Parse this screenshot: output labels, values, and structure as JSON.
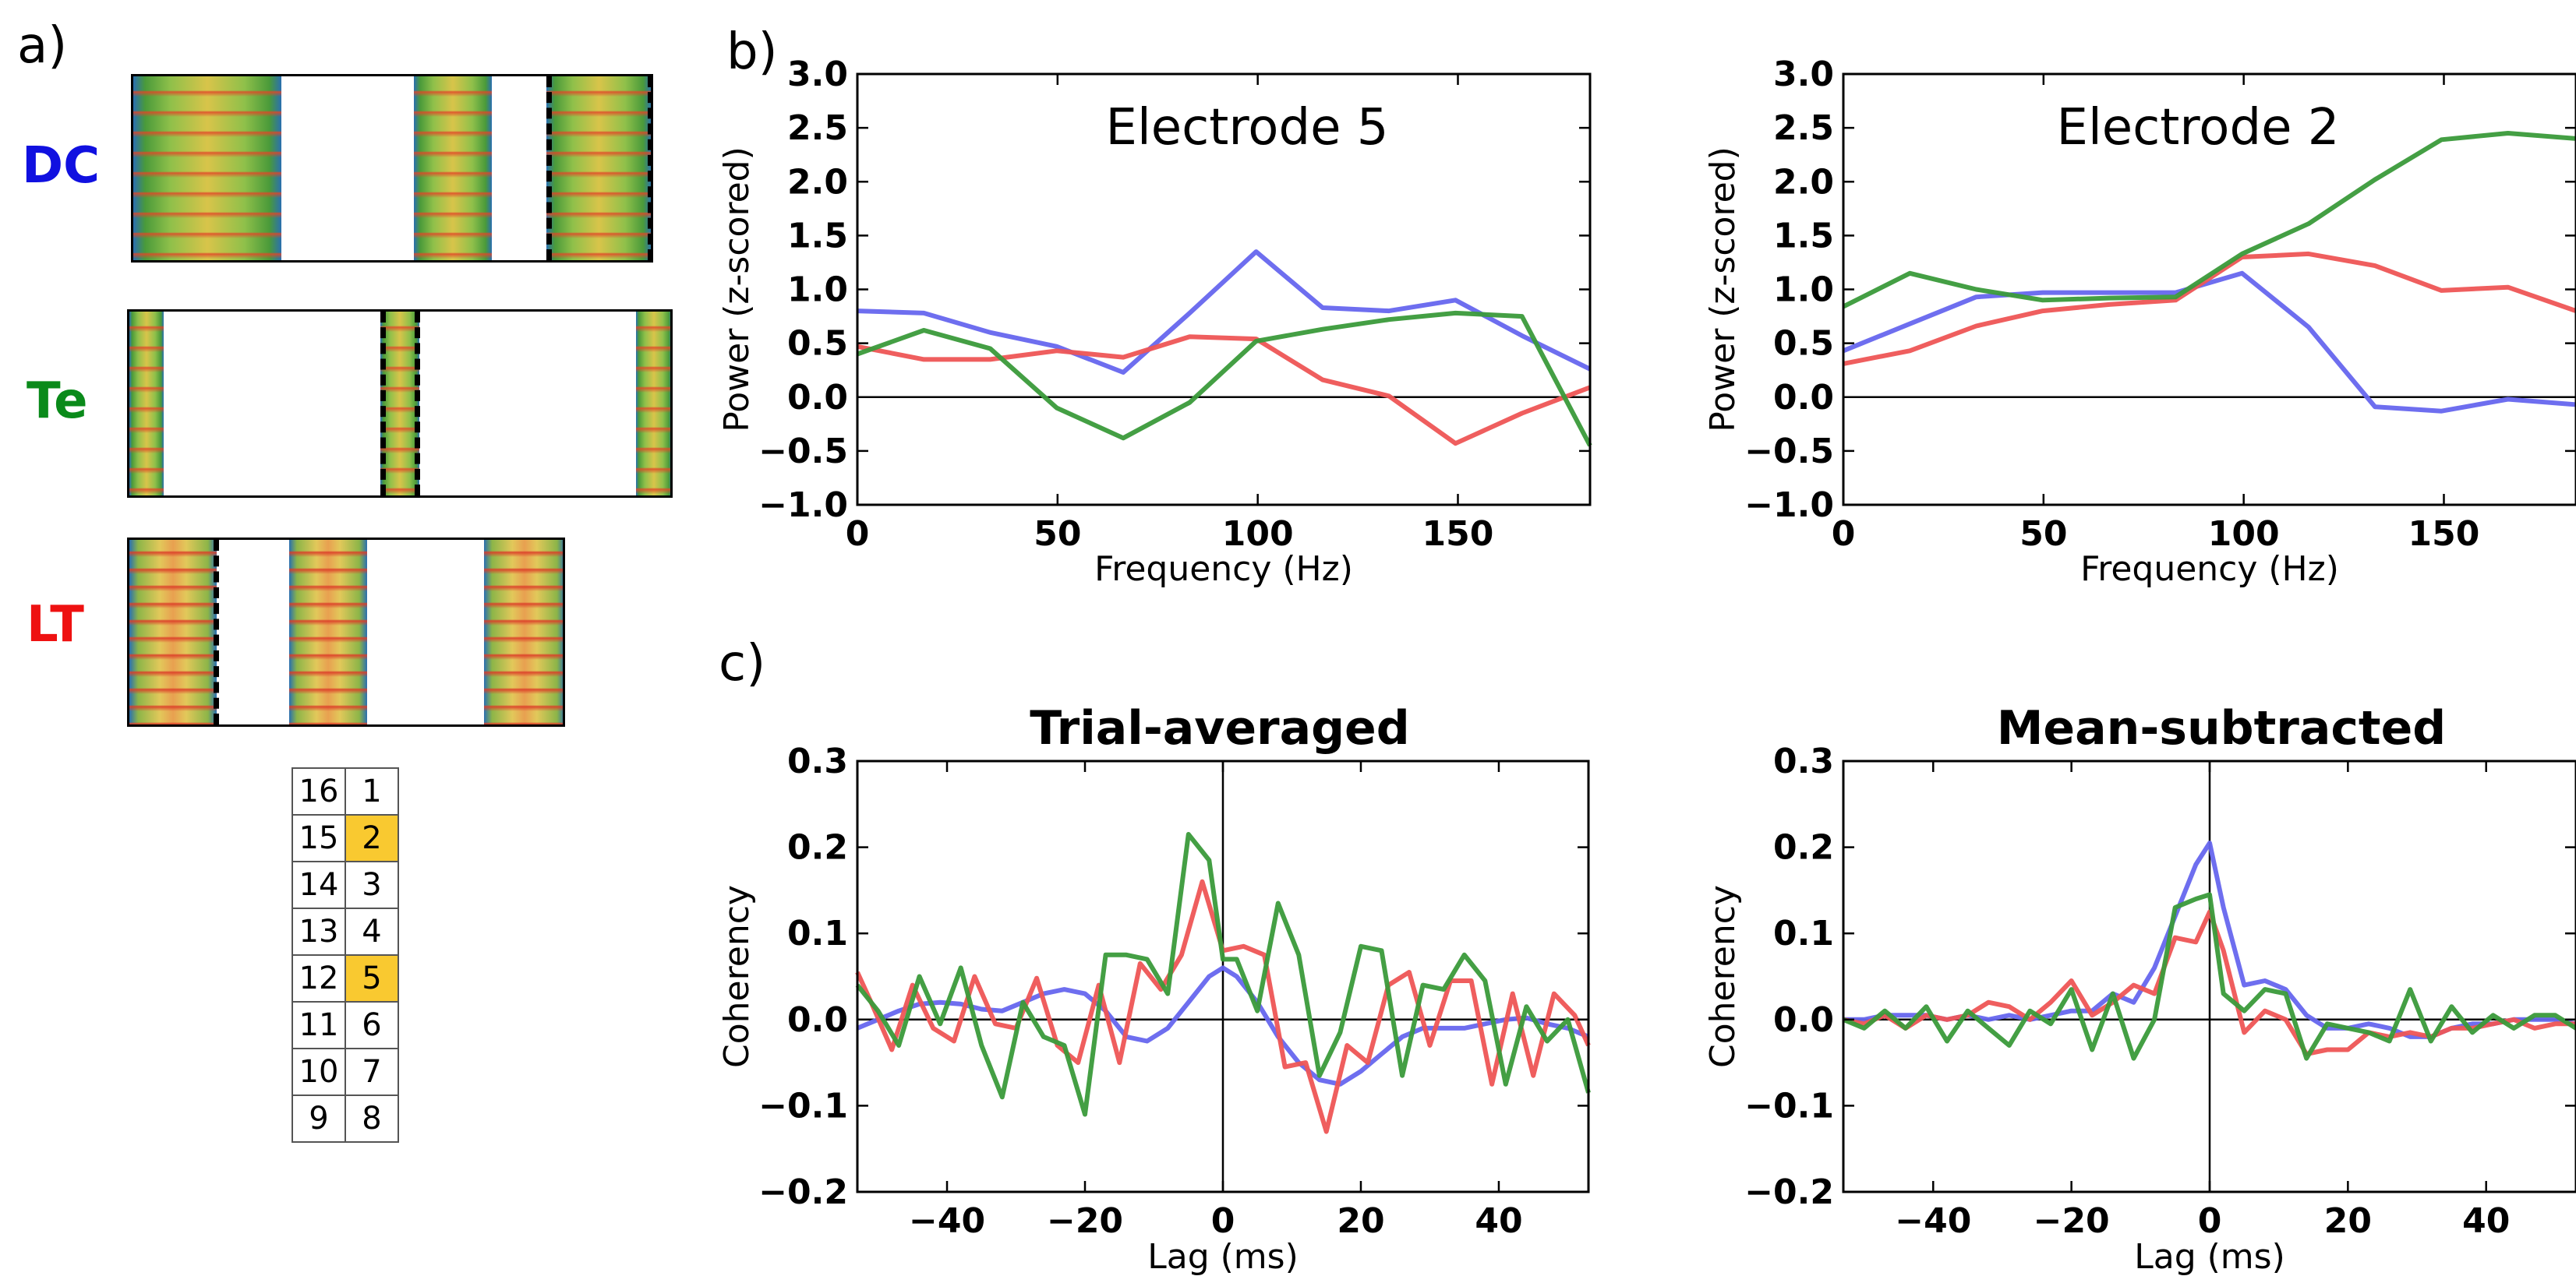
{
  "panel_labels": {
    "a": "a)",
    "b": "b)",
    "c": "c)"
  },
  "stim_labels": [
    {
      "text": "DC",
      "color": "#1010e0"
    },
    {
      "text": "Te",
      "color": "#0a8a1a"
    },
    {
      "text": "LT",
      "color": "#ee1111"
    }
  ],
  "electrode_grid": {
    "rows": [
      [
        "16",
        "1"
      ],
      [
        "15",
        "2"
      ],
      [
        "14",
        "3"
      ],
      [
        "13",
        "4"
      ],
      [
        "12",
        "5"
      ],
      [
        "11",
        "6"
      ],
      [
        "10",
        "7"
      ],
      [
        "9",
        "8"
      ]
    ],
    "highlighted": [
      "2",
      "5"
    ],
    "highlight_color": "#f9c930"
  },
  "colors": {
    "DC": "#6666ee",
    "Te": "#3a9a3a",
    "LT": "#ee5555"
  },
  "chart_data": [
    {
      "type": "line",
      "title": "Electrode 5",
      "xlabel": "Frequency (Hz)",
      "ylabel": "Power (z-scored)",
      "xlim": [
        0,
        183
      ],
      "ylim": [
        -1.0,
        3.0
      ],
      "xticks": [
        0,
        50,
        100,
        150
      ],
      "xtick_labels": [
        "0",
        "50",
        "100",
        "150"
      ],
      "yticks": [
        -1.0,
        -0.5,
        0.0,
        0.5,
        1.0,
        1.5,
        2.0,
        2.5,
        3.0
      ],
      "ytick_labels": [
        "−1.0",
        "−0.5",
        "0.0",
        "0.5",
        "1.0",
        "1.5",
        "2.0",
        "2.5",
        "3.0"
      ],
      "hline": 0,
      "series": [
        {
          "key": "DC",
          "color": "#6666ee",
          "x": [
            0,
            16.6,
            33.2,
            49.8,
            66.4,
            83,
            99.6,
            116.2,
            132.8,
            149.4,
            166,
            183
          ],
          "y": [
            0.8,
            0.78,
            0.6,
            0.47,
            0.23,
            0.78,
            1.35,
            0.83,
            0.8,
            0.9,
            0.57,
            0.26
          ]
        },
        {
          "key": "LT",
          "color": "#ee5555",
          "x": [
            0,
            16.6,
            33.2,
            49.8,
            66.4,
            83,
            99.6,
            116.2,
            132.8,
            149.4,
            166,
            183
          ],
          "y": [
            0.47,
            0.35,
            0.35,
            0.43,
            0.37,
            0.56,
            0.54,
            0.16,
            0.01,
            -0.43,
            -0.15,
            0.09
          ]
        },
        {
          "key": "Te",
          "color": "#3a9a3a",
          "x": [
            0,
            16.6,
            33.2,
            49.8,
            66.4,
            83,
            99.6,
            116.2,
            132.8,
            149.4,
            166,
            183
          ],
          "y": [
            0.4,
            0.62,
            0.45,
            -0.1,
            -0.38,
            -0.05,
            0.52,
            0.63,
            0.72,
            0.78,
            0.75,
            -0.45
          ]
        }
      ]
    },
    {
      "type": "line",
      "title": "Electrode 2",
      "xlabel": "Frequency (Hz)",
      "ylabel": "Power (z-scored)",
      "xlim": [
        0,
        183
      ],
      "ylim": [
        -1.0,
        3.0
      ],
      "xticks": [
        0,
        50,
        100,
        150
      ],
      "xtick_labels": [
        "0",
        "50",
        "100",
        "150"
      ],
      "yticks": [
        -1.0,
        -0.5,
        0.0,
        0.5,
        1.0,
        1.5,
        2.0,
        2.5,
        3.0
      ],
      "ytick_labels": [
        "−1.0",
        "−0.5",
        "0.0",
        "0.5",
        "1.0",
        "1.5",
        "2.0",
        "2.5",
        "3.0"
      ],
      "hline": 0,
      "series": [
        {
          "key": "DC",
          "color": "#6666ee",
          "x": [
            0,
            16.6,
            33.2,
            49.8,
            66.4,
            83,
            99.6,
            116.2,
            132.8,
            149.4,
            166,
            183
          ],
          "y": [
            0.43,
            0.68,
            0.93,
            0.97,
            0.97,
            0.97,
            1.15,
            0.65,
            -0.09,
            -0.13,
            -0.02,
            -0.07
          ]
        },
        {
          "key": "LT",
          "color": "#ee5555",
          "x": [
            0,
            16.6,
            33.2,
            49.8,
            66.4,
            83,
            99.6,
            116.2,
            132.8,
            149.4,
            166,
            183
          ],
          "y": [
            0.31,
            0.43,
            0.66,
            0.8,
            0.86,
            0.9,
            1.3,
            1.33,
            1.22,
            0.99,
            1.02,
            0.8
          ]
        },
        {
          "key": "Te",
          "color": "#3a9a3a",
          "x": [
            0,
            16.6,
            33.2,
            49.8,
            66.4,
            83,
            99.6,
            116.2,
            132.8,
            149.4,
            166,
            183
          ],
          "y": [
            0.84,
            1.15,
            1.0,
            0.9,
            0.92,
            0.93,
            1.33,
            1.61,
            2.02,
            2.39,
            2.45,
            2.4
          ]
        }
      ]
    },
    {
      "type": "line",
      "title": "Trial-averaged",
      "xlabel": "Lag (ms)",
      "ylabel": "Coherency",
      "xlim": [
        -53,
        53
      ],
      "ylim": [
        -0.2,
        0.3
      ],
      "xticks": [
        -40,
        -20,
        0,
        20,
        40
      ],
      "xtick_labels": [
        "−40",
        "−20",
        "0",
        "20",
        "40"
      ],
      "yticks": [
        -0.2,
        -0.1,
        0.0,
        0.1,
        0.2,
        0.3
      ],
      "ytick_labels": [
        "−0.2",
        "−0.1",
        "0.0",
        "0.1",
        "0.2",
        "0.3"
      ],
      "hline": 0,
      "vline": 0,
      "series": [
        {
          "key": "DC",
          "color": "#6666ee",
          "x": [
            -53,
            -50,
            -47,
            -44,
            -41,
            -38,
            -35,
            -32,
            -29,
            -26,
            -23,
            -20,
            -17,
            -14,
            -11,
            -8,
            -5,
            -2,
            0,
            2,
            5,
            8,
            11,
            14,
            17,
            20,
            23,
            26,
            29,
            32,
            35,
            38,
            41,
            44,
            47,
            50,
            53
          ],
          "y": [
            -0.01,
            0.0,
            0.01,
            0.018,
            0.02,
            0.018,
            0.012,
            0.01,
            0.02,
            0.03,
            0.035,
            0.03,
            0.01,
            -0.02,
            -0.025,
            -0.01,
            0.02,
            0.05,
            0.06,
            0.05,
            0.02,
            -0.02,
            -0.05,
            -0.07,
            -0.075,
            -0.06,
            -0.04,
            -0.02,
            -0.01,
            -0.01,
            -0.01,
            -0.005,
            0.0,
            0.002,
            -0.005,
            -0.01,
            -0.02
          ]
        },
        {
          "key": "LT",
          "color": "#ee5555",
          "x": [
            -53,
            -51,
            -48,
            -45,
            -42,
            -39,
            -36,
            -33,
            -30,
            -27,
            -24,
            -21,
            -18,
            -15,
            -12,
            -9,
            -6,
            -3,
            0,
            3,
            6,
            9,
            12,
            15,
            18,
            21,
            24,
            27,
            30,
            33,
            36,
            39,
            42,
            45,
            48,
            51,
            53
          ],
          "y": [
            0.055,
            0.02,
            -0.035,
            0.04,
            -0.01,
            -0.025,
            0.05,
            -0.005,
            -0.01,
            0.048,
            -0.03,
            -0.05,
            0.04,
            -0.05,
            0.065,
            0.035,
            0.075,
            0.16,
            0.08,
            0.085,
            0.075,
            -0.055,
            -0.05,
            -0.13,
            -0.03,
            -0.05,
            0.04,
            0.055,
            -0.03,
            0.045,
            0.045,
            -0.075,
            0.03,
            -0.065,
            0.03,
            0.005,
            -0.03
          ]
        },
        {
          "key": "Te",
          "color": "#3a9a3a",
          "x": [
            -53,
            -50,
            -47,
            -44,
            -41,
            -38,
            -35,
            -32,
            -29,
            -26,
            -23,
            -20,
            -17,
            -14,
            -11,
            -8,
            -5,
            -2,
            0,
            2,
            5,
            8,
            11,
            14,
            17,
            20,
            23,
            26,
            29,
            32,
            35,
            38,
            41,
            44,
            47,
            50,
            53
          ],
          "y": [
            0.04,
            0.01,
            -0.03,
            0.05,
            -0.005,
            0.06,
            -0.03,
            -0.09,
            0.02,
            -0.02,
            -0.03,
            -0.11,
            0.075,
            0.075,
            0.07,
            0.03,
            0.215,
            0.185,
            0.07,
            0.07,
            0.01,
            0.135,
            0.075,
            -0.065,
            -0.015,
            0.085,
            0.08,
            -0.065,
            0.04,
            0.035,
            0.075,
            0.045,
            -0.075,
            0.015,
            -0.025,
            0.0,
            -0.085
          ]
        }
      ]
    },
    {
      "type": "line",
      "title": "Mean-subtracted",
      "xlabel": "Lag (ms)",
      "ylabel": "Coherency",
      "xlim": [
        -53,
        53
      ],
      "ylim": [
        -0.2,
        0.3
      ],
      "xticks": [
        -40,
        -20,
        0,
        20,
        40
      ],
      "xtick_labels": [
        "−40",
        "−20",
        "0",
        "20",
        "40"
      ],
      "yticks": [
        -0.2,
        -0.1,
        0.0,
        0.1,
        0.2,
        0.3
      ],
      "ytick_labels": [
        "−0.2",
        "−0.1",
        "0.0",
        "0.1",
        "0.2",
        "0.3"
      ],
      "hline": 0,
      "vline": 0,
      "series": [
        {
          "key": "DC",
          "color": "#6666ee",
          "x": [
            -53,
            -50,
            -47,
            -44,
            -41,
            -38,
            -35,
            -32,
            -29,
            -26,
            -23,
            -20,
            -17,
            -14,
            -11,
            -8,
            -5,
            -2,
            0,
            2,
            5,
            8,
            11,
            14,
            17,
            20,
            23,
            26,
            29,
            32,
            35,
            38,
            41,
            44,
            47,
            50,
            53
          ],
          "y": [
            0.0,
            0.0,
            0.005,
            0.005,
            0.005,
            0.0,
            0.005,
            0.0,
            0.005,
            0.0,
            0.005,
            0.01,
            0.01,
            0.03,
            0.02,
            0.06,
            0.12,
            0.18,
            0.205,
            0.13,
            0.04,
            0.045,
            0.035,
            0.005,
            -0.01,
            -0.01,
            -0.005,
            -0.01,
            -0.02,
            -0.02,
            -0.01,
            -0.005,
            -0.005,
            0.0,
            0.0,
            0.0,
            -0.005
          ]
        },
        {
          "key": "LT",
          "color": "#ee5555",
          "x": [
            -53,
            -50,
            -47,
            -44,
            -41,
            -38,
            -35,
            -32,
            -29,
            -26,
            -23,
            -20,
            -17,
            -14,
            -11,
            -8,
            -5,
            -2,
            0,
            2,
            5,
            8,
            11,
            14,
            17,
            20,
            23,
            26,
            29,
            32,
            35,
            38,
            41,
            44,
            47,
            50,
            53
          ],
          "y": [
            0.0,
            -0.005,
            0.005,
            -0.01,
            0.005,
            0.0,
            0.005,
            0.02,
            0.015,
            0.0,
            0.02,
            0.045,
            0.005,
            0.02,
            0.04,
            0.03,
            0.095,
            0.09,
            0.125,
            0.08,
            -0.015,
            0.01,
            0.0,
            -0.04,
            -0.035,
            -0.035,
            -0.015,
            -0.02,
            -0.015,
            -0.02,
            -0.01,
            -0.01,
            -0.005,
            0.0,
            -0.01,
            -0.005,
            -0.005
          ]
        },
        {
          "key": "Te",
          "color": "#3a9a3a",
          "x": [
            -53,
            -50,
            -47,
            -44,
            -41,
            -38,
            -35,
            -32,
            -29,
            -26,
            -23,
            -20,
            -17,
            -14,
            -11,
            -8,
            -5,
            -2,
            0,
            2,
            5,
            8,
            11,
            14,
            17,
            20,
            23,
            26,
            29,
            32,
            35,
            38,
            41,
            44,
            47,
            50,
            53
          ],
          "y": [
            0.0,
            -0.01,
            0.01,
            -0.01,
            0.015,
            -0.025,
            0.01,
            -0.01,
            -0.03,
            0.01,
            -0.005,
            0.035,
            -0.035,
            0.03,
            -0.045,
            0.0,
            0.13,
            0.14,
            0.145,
            0.03,
            0.01,
            0.035,
            0.03,
            -0.045,
            -0.005,
            -0.01,
            -0.015,
            -0.025,
            0.035,
            -0.025,
            0.015,
            -0.015,
            0.005,
            -0.01,
            0.005,
            0.005,
            -0.01
          ]
        }
      ]
    }
  ]
}
